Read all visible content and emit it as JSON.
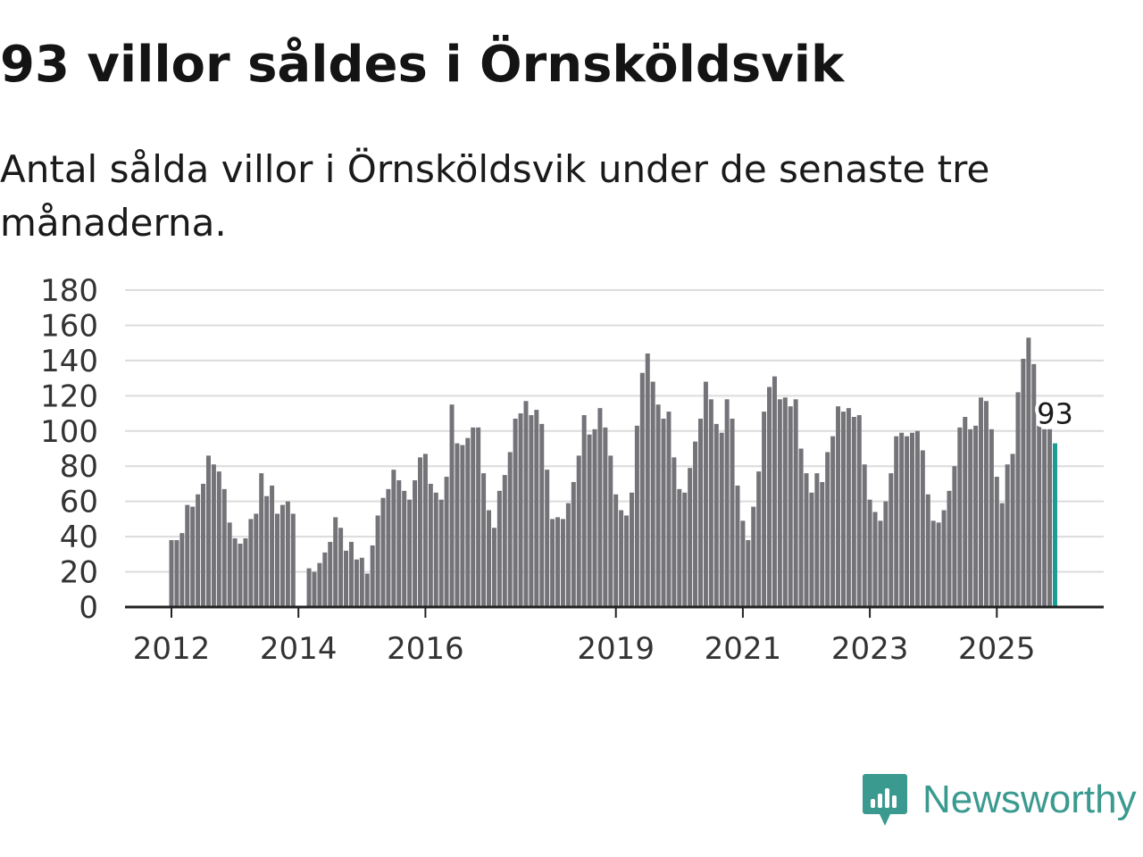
{
  "headline": "93 villor såldes i Örnsköldsvik",
  "subheadline": "Antal sålda villor i Örnsköldsvik under de senaste tre månaderna.",
  "brand": {
    "name": "Newsworthy",
    "color": "#3a9a90"
  },
  "colors": {
    "bar": "#737378",
    "highlight": "#1a9c96",
    "grid": "#dcdcdc",
    "axis": "#222222"
  },
  "chart_data": {
    "type": "bar",
    "title": "93 villor såldes i Örnsköldsvik",
    "xlabel": "",
    "ylabel": "",
    "ylim": [
      0,
      180
    ],
    "yticks": [
      0,
      20,
      40,
      60,
      80,
      100,
      120,
      140,
      160,
      180
    ],
    "x_start": "2012-01",
    "xticks": [
      {
        "label": "2012",
        "index": 0
      },
      {
        "label": "2014",
        "index": 24
      },
      {
        "label": "2016",
        "index": 48
      },
      {
        "label": "2019",
        "index": 84
      },
      {
        "label": "2021",
        "index": 108
      },
      {
        "label": "2023",
        "index": 132
      },
      {
        "label": "2025",
        "index": 156
      }
    ],
    "values": [
      38,
      38,
      42,
      58,
      57,
      64,
      70,
      86,
      81,
      77,
      67,
      48,
      39,
      36,
      39,
      50,
      53,
      76,
      63,
      69,
      53,
      58,
      60,
      53,
      null,
      null,
      22,
      20,
      25,
      31,
      37,
      51,
      45,
      32,
      37,
      27,
      28,
      19,
      35,
      52,
      62,
      67,
      78,
      72,
      66,
      61,
      72,
      85,
      87,
      70,
      65,
      61,
      74,
      115,
      93,
      92,
      96,
      102,
      102,
      76,
      55,
      45,
      66,
      75,
      88,
      107,
      110,
      117,
      109,
      112,
      104,
      78,
      50,
      51,
      50,
      59,
      71,
      86,
      109,
      98,
      101,
      113,
      102,
      86,
      64,
      55,
      52,
      65,
      103,
      133,
      144,
      128,
      115,
      107,
      111,
      85,
      67,
      65,
      79,
      94,
      107,
      128,
      118,
      104,
      99,
      118,
      107,
      69,
      49,
      38,
      57,
      77,
      111,
      125,
      131,
      118,
      119,
      114,
      118,
      90,
      76,
      65,
      76,
      71,
      88,
      97,
      114,
      111,
      113,
      108,
      109,
      81,
      61,
      54,
      49,
      60,
      76,
      97,
      99,
      97,
      99,
      100,
      89,
      64,
      49,
      48,
      55,
      66,
      80,
      102,
      108,
      101,
      103,
      119,
      117,
      101,
      74,
      59,
      81,
      87,
      122,
      141,
      153,
      138,
      104,
      101,
      101,
      93
    ],
    "highlight_last": true,
    "annotations": [
      {
        "index": 167,
        "text": "93"
      }
    ]
  }
}
